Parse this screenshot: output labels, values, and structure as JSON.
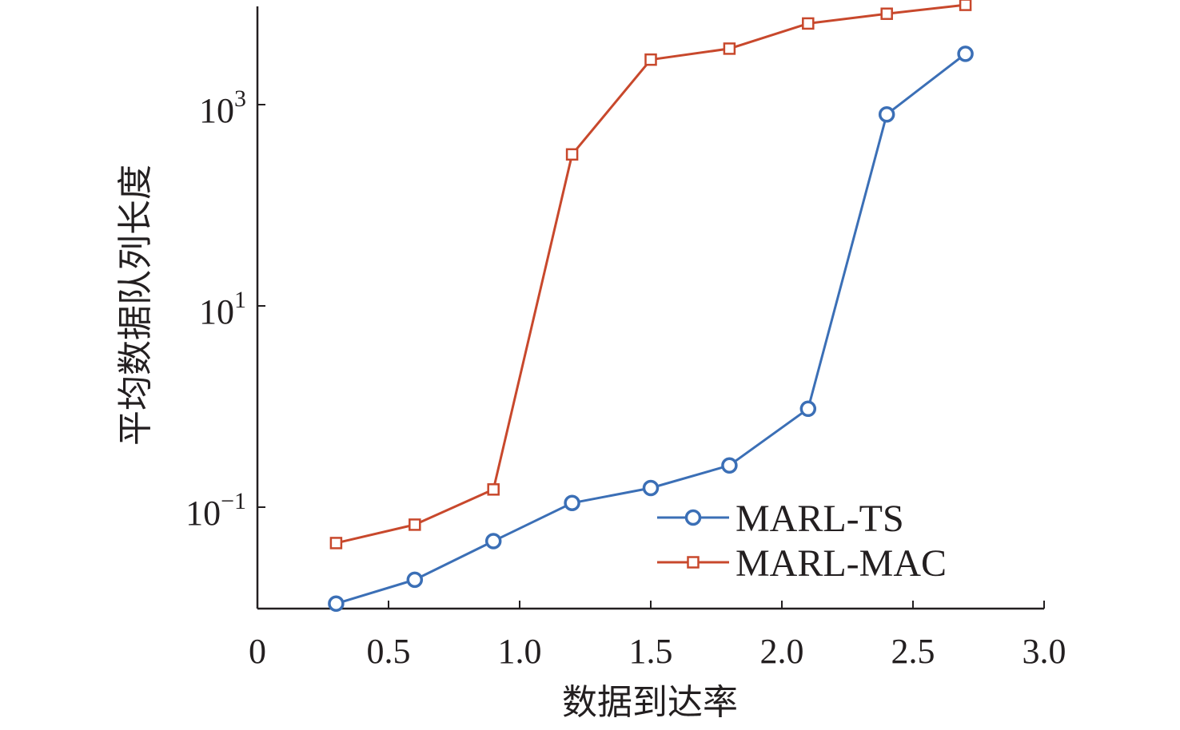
{
  "chart_data": {
    "type": "line",
    "xlabel": "数据到达率",
    "ylabel": "平均数据队列长度",
    "x_scale": "linear",
    "y_scale": "log",
    "xlim": [
      0,
      3.0
    ],
    "ylim": [
      0.01,
      10000
    ],
    "x_ticks": [
      0,
      0.5,
      1.0,
      1.5,
      2.0,
      2.5,
      3.0
    ],
    "x_tick_labels": [
      "0",
      "0.5",
      "1.0",
      "1.5",
      "2.0",
      "2.5",
      "3.0"
    ],
    "y_ticks": [
      {
        "value": 0.1,
        "base": "10",
        "exp": "−1"
      },
      {
        "value": 10,
        "base": "10",
        "exp": "1"
      },
      {
        "value": 1000,
        "base": "10",
        "exp": "3"
      }
    ],
    "grid": false,
    "legend_position": "bottom-right",
    "series": [
      {
        "name": "MARL-TS",
        "color": "#3b6fb6",
        "marker": "circle",
        "x": [
          0.3,
          0.6,
          0.9,
          1.2,
          1.5,
          1.8,
          2.1,
          2.4,
          2.7
        ],
        "y": [
          0.011,
          0.019,
          0.046,
          0.11,
          0.155,
          0.26,
          0.95,
          800,
          3200
        ]
      },
      {
        "name": "MARL-MAC",
        "color": "#c8482c",
        "marker": "square",
        "x": [
          0.3,
          0.6,
          0.9,
          1.2,
          1.5,
          1.8,
          2.1,
          2.4,
          2.7
        ],
        "y": [
          0.044,
          0.067,
          0.15,
          320,
          2800,
          3600,
          6400,
          8000,
          9800
        ]
      }
    ]
  }
}
